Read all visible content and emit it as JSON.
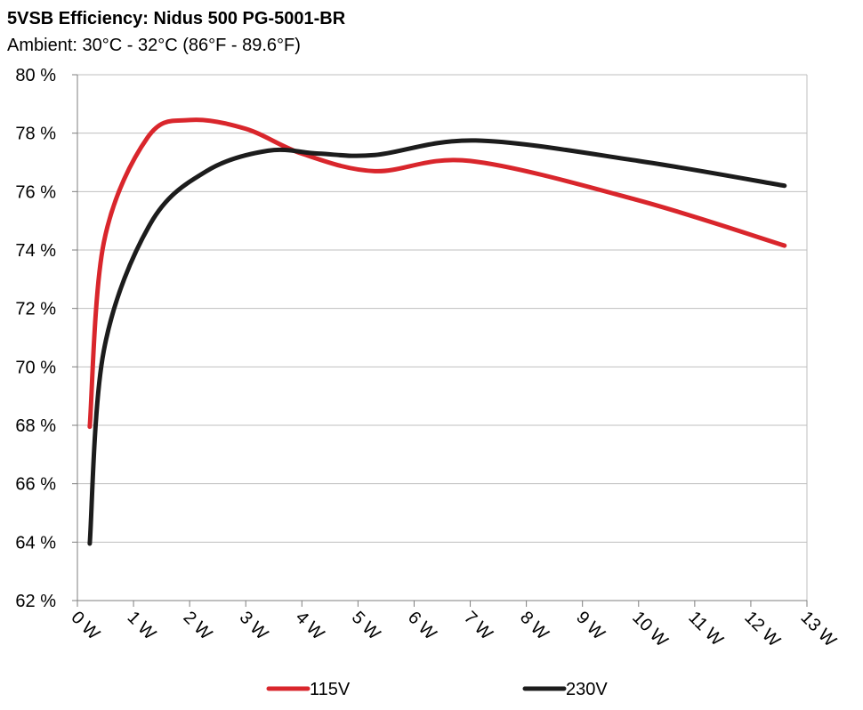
{
  "chart_data": {
    "type": "line",
    "title": "5VSB Efficiency: Nidus 500 PG-5001-BR",
    "subtitle": "Ambient: 30°C - 32°C (86°F - 89.6°F)",
    "xlabel": "",
    "ylabel": "",
    "xlim": [
      0,
      13
    ],
    "ylim": [
      62,
      80
    ],
    "x_ticks": [
      0,
      1,
      2,
      3,
      4,
      5,
      6,
      7,
      8,
      9,
      10,
      11,
      12,
      13
    ],
    "x_tick_labels": [
      "0 W",
      "1 W",
      "2 W",
      "3 W",
      "4 W",
      "5 W",
      "6 W",
      "7 W",
      "8 W",
      "9 W",
      "10 W",
      "11 W",
      "12 W",
      "13 W"
    ],
    "y_ticks": [
      62,
      64,
      66,
      68,
      70,
      72,
      74,
      76,
      78,
      80
    ],
    "y_tick_labels": [
      "62 %",
      "64 %",
      "66 %",
      "68 %",
      "70 %",
      "72 %",
      "74 %",
      "76 %",
      "78 %",
      "80 %"
    ],
    "grid": "horizontal",
    "legend_position": "bottom",
    "series": [
      {
        "name": "115V",
        "color": "#d9262c",
        "x": [
          0.22,
          0.47,
          1.25,
          2.0,
          3.0,
          4.0,
          5.3,
          7.0,
          10.0,
          12.6
        ],
        "y": [
          67.95,
          74.25,
          77.85,
          78.45,
          78.15,
          77.3,
          76.7,
          77.05,
          75.7,
          74.15
        ]
      },
      {
        "name": "230V",
        "color": "#1c1c1c",
        "x": [
          0.22,
          0.47,
          1.3,
          2.3,
          3.4,
          4.3,
          5.3,
          7.1,
          10.0,
          12.6
        ],
        "y": [
          63.95,
          70.55,
          74.9,
          76.7,
          77.4,
          77.3,
          77.25,
          77.75,
          77.05,
          76.2
        ]
      }
    ]
  }
}
